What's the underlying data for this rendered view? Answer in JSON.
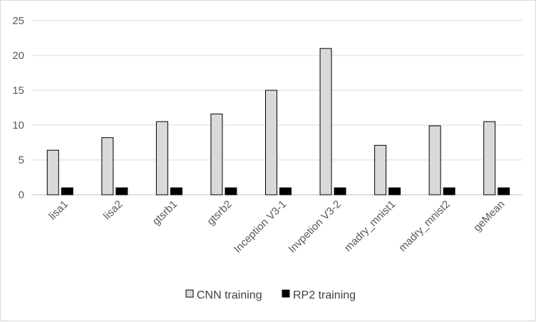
{
  "chart_data": {
    "type": "bar",
    "title": "",
    "xlabel": "",
    "ylabel": "",
    "ylim": [
      0,
      25
    ],
    "yticks": [
      0,
      5,
      10,
      15,
      20,
      25
    ],
    "grid": true,
    "legend_position": "bottom",
    "categories": [
      "lisa1",
      "lisa2",
      "gtsrb1",
      "gtsrb2",
      "Inception V3-1",
      "Invpetion V3-2",
      "madry_mnist1",
      "madry_mnist2",
      "geMean"
    ],
    "series": [
      {
        "name": "CNN training",
        "color": "#d9d9d9",
        "values": [
          6.4,
          8.2,
          10.5,
          11.6,
          15.0,
          21.0,
          7.1,
          9.9,
          10.5
        ]
      },
      {
        "name": "RP2 training",
        "color": "#000000",
        "values": [
          1,
          1,
          1,
          1,
          1,
          1,
          1,
          1,
          1
        ]
      }
    ]
  }
}
